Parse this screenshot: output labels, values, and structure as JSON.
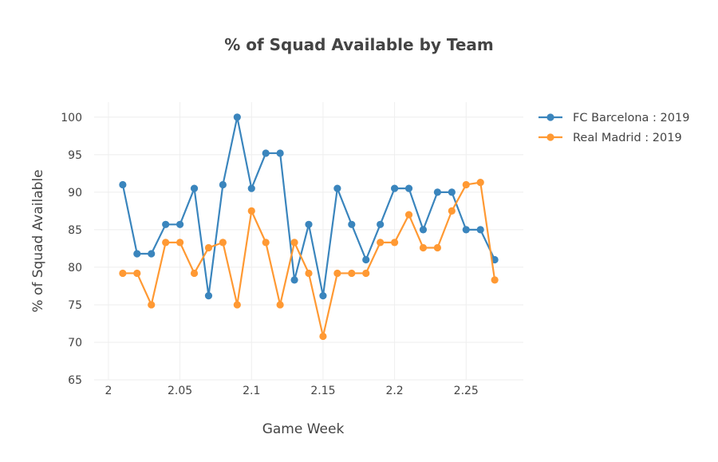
{
  "chart_data": {
    "type": "line",
    "title": "% of Squad Available by Team",
    "xlabel": "Game Week",
    "ylabel": "% of Squad Available",
    "xlim": [
      1.99,
      2.29
    ],
    "ylim": [
      65,
      102
    ],
    "x_ticks": [
      2,
      2.05,
      2.1,
      2.15,
      2.2,
      2.25
    ],
    "x_tick_labels": [
      "2",
      "2.05",
      "2.1",
      "2.15",
      "2.2",
      "2.25"
    ],
    "y_ticks": [
      65,
      70,
      75,
      80,
      85,
      90,
      95,
      100
    ],
    "y_tick_labels": [
      "65",
      "70",
      "75",
      "80",
      "85",
      "90",
      "95",
      "100"
    ],
    "grid": true,
    "legend_position": "top-right",
    "x": [
      2.01,
      2.02,
      2.03,
      2.04,
      2.05,
      2.06,
      2.07,
      2.08,
      2.09,
      2.1,
      2.11,
      2.12,
      2.13,
      2.14,
      2.15,
      2.16,
      2.17,
      2.18,
      2.19,
      2.2,
      2.21,
      2.22,
      2.23,
      2.24,
      2.25,
      2.26,
      2.27
    ],
    "series": [
      {
        "name": "FC Barcelona : 2019",
        "color": "#3a85bd",
        "values": [
          91,
          81.8,
          81.8,
          85.7,
          85.7,
          90.5,
          76.2,
          91,
          100,
          90.5,
          95.2,
          95.2,
          78.3,
          85.7,
          76.2,
          90.5,
          85.7,
          81,
          85.7,
          90.5,
          90.5,
          85,
          90,
          90,
          85,
          85,
          81
        ]
      },
      {
        "name": "Real Madrid : 2019",
        "color": "#ff9933",
        "values": [
          79.2,
          79.2,
          75,
          83.3,
          83.3,
          79.2,
          82.6,
          83.3,
          75,
          87.5,
          83.3,
          75,
          83.3,
          79.2,
          70.8,
          79.2,
          79.2,
          79.2,
          83.3,
          83.3,
          87,
          82.6,
          82.6,
          87.5,
          91,
          91.3,
          78.3
        ]
      }
    ]
  }
}
